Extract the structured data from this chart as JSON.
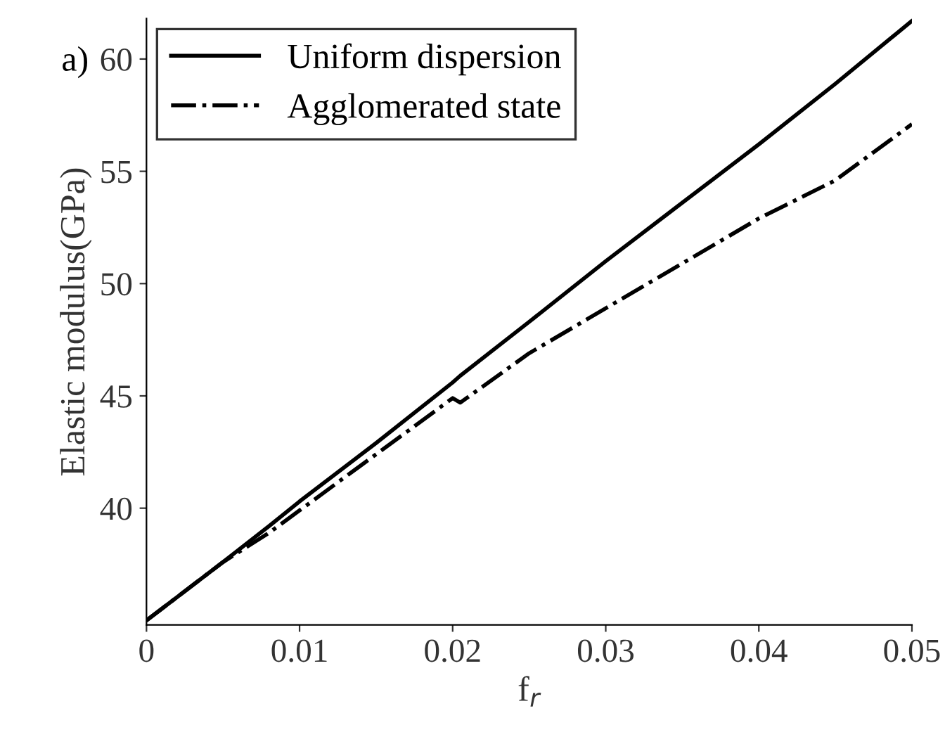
{
  "chart_data": {
    "type": "line",
    "xlabel": "f$_{r}$",
    "ylabel": "Elastic modulus(GPa)",
    "annotations": [
      "a)"
    ],
    "x": [
      0,
      0.005,
      0.008,
      0.01,
      0.015,
      0.02,
      0.0205,
      0.025,
      0.03,
      0.035,
      0.04,
      0.045,
      0.05
    ],
    "series": [
      {
        "name": "Uniform dispersion",
        "color": "#000000",
        "line_style": "solid",
        "values": [
          35.0,
          37.6,
          39.2,
          40.3,
          42.9,
          45.6,
          45.9,
          48.3,
          51.0,
          53.6,
          56.2,
          58.9,
          61.7
        ]
      },
      {
        "name": "Agglomerated state",
        "color": "#000000",
        "line_style": "dashdot",
        "values": [
          35.0,
          37.6,
          38.9,
          39.9,
          42.4,
          44.9,
          44.7,
          46.9,
          48.9,
          50.9,
          52.9,
          54.6,
          57.1
        ]
      }
    ],
    "xlim": [
      0,
      0.05
    ],
    "ylim": [
      34.8,
      61.8
    ],
    "xticks": [
      0,
      0.01,
      0.02,
      0.03,
      0.04,
      0.05
    ],
    "yticks": [
      40,
      45,
      50,
      55,
      60
    ],
    "legend": "top left",
    "grid": false
  }
}
